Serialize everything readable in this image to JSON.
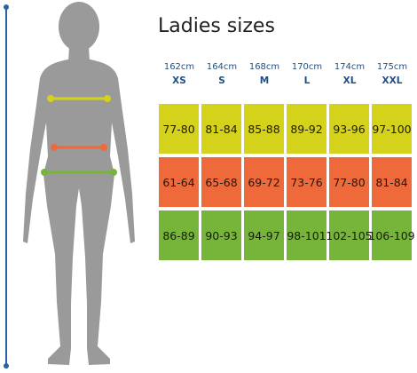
{
  "title": "Ladies sizes",
  "colors": {
    "bust": "#d5d21b",
    "waist": "#ef6a3a",
    "hip": "#76b53a",
    "height_line": "#2a62a6",
    "label_text": "#1e4f86",
    "figure": "#9a9a9a"
  },
  "columns": [
    {
      "height": "162cm",
      "size": "XS"
    },
    {
      "height": "164cm",
      "size": "S"
    },
    {
      "height": "168cm",
      "size": "M"
    },
    {
      "height": "170cm",
      "size": "L"
    },
    {
      "height": "174cm",
      "size": "XL"
    },
    {
      "height": "175cm",
      "size": "XXL"
    }
  ],
  "rows": {
    "bust": [
      "77-80",
      "81-84",
      "85-88",
      "89-92",
      "93-96",
      "97-100"
    ],
    "waist": [
      "61-64",
      "65-68",
      "69-72",
      "73-76",
      "77-80",
      "81-84"
    ],
    "hip": [
      "86-89",
      "90-93",
      "94-97",
      "98-101",
      "102-105",
      "106-109"
    ]
  }
}
